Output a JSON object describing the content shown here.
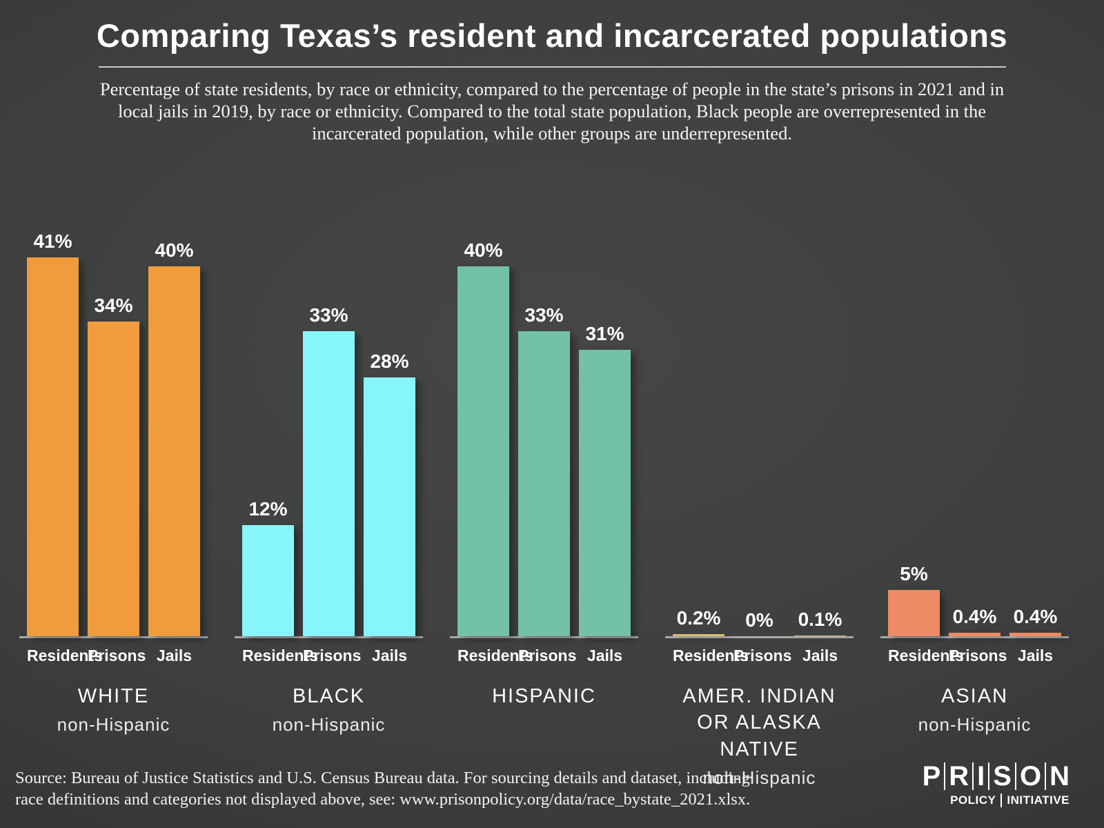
{
  "title": "Comparing Texas’s resident and incarcerated populations",
  "subtitle": "Percentage of state residents, by race or ethnicity, compared to the percentage of people in the state’s prisons in 2021 and in local jails in 2019, by race or ethnicity. Compared to the total state population, Black people are overrepresented in the incarcerated population, while other groups are underrepresented.",
  "source": {
    "line1": "Source: Bureau of Justice Statistics and U.S. Census Bureau data. For sourcing details and dataset, including",
    "line2": "race definitions and categories not displayed above, see: www.prisonpolicy.org/data/race_bystate_2021.xlsx."
  },
  "logo": {
    "prison": "PRISON",
    "policy": "POLICY",
    "initiative": "INITIATIVE"
  },
  "chart_data": {
    "type": "bar",
    "bar_categories": [
      "Residents",
      "Prisons",
      "Jails"
    ],
    "unit": "%",
    "ylim": [
      0,
      45
    ],
    "grid": false,
    "legend": "none",
    "baseline_color": "#a8a8a8",
    "groups": [
      {
        "label": "WHITE",
        "sublabel": "non-Hispanic",
        "color": "#F09C3D",
        "values": [
          41,
          34,
          40
        ],
        "value_labels": [
          "41%",
          "34%",
          "40%"
        ]
      },
      {
        "label": "BLACK",
        "sublabel": "non-Hispanic",
        "color": "#87F6FA",
        "values": [
          12,
          33,
          28
        ],
        "value_labels": [
          "12%",
          "33%",
          "28%"
        ]
      },
      {
        "label": "HISPANIC",
        "sublabel": "",
        "color": "#73C1A7",
        "values": [
          40,
          33,
          31
        ],
        "value_labels": [
          "40%",
          "33%",
          "31%"
        ]
      },
      {
        "label": "AMER. INDIAN OR ALASKA NATIVE",
        "sublabel": "non-Hispanic",
        "color": "#D5BE72",
        "values": [
          0.2,
          0,
          0.1
        ],
        "value_labels": [
          "0.2%",
          "0%",
          "0.1%"
        ]
      },
      {
        "label": "ASIAN",
        "sublabel": "non-Hispanic",
        "color": "#EE8A65",
        "values": [
          5,
          0.4,
          0.4
        ],
        "value_labels": [
          "5%",
          "0.4%",
          "0.4%"
        ]
      }
    ]
  }
}
